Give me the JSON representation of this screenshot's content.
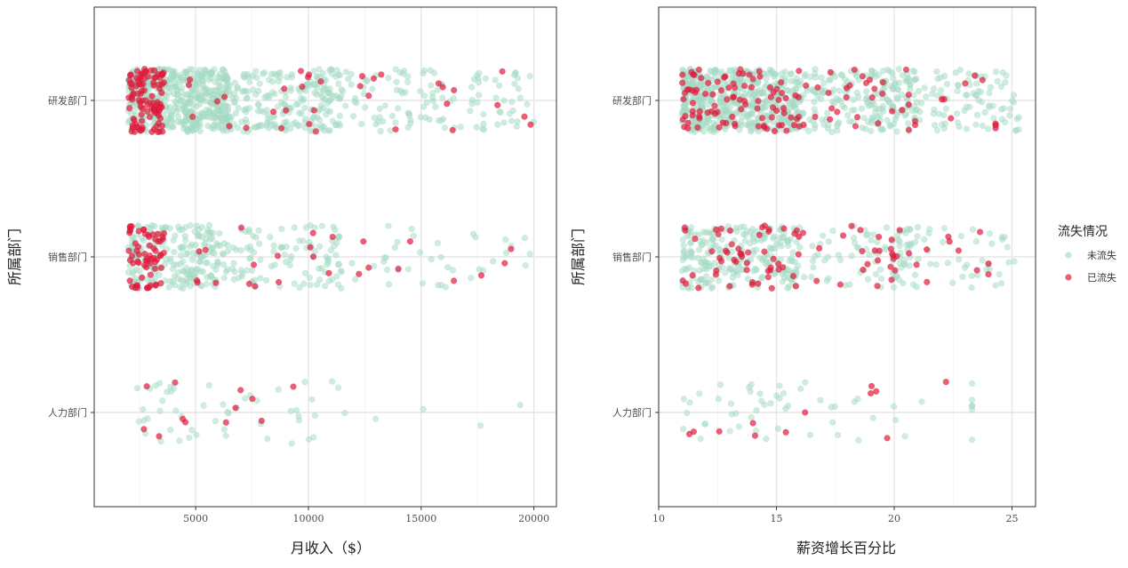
{
  "legend": {
    "title": "流失情况",
    "position": "right",
    "entries": [
      {
        "key": "no",
        "label": "未流失",
        "color": "#a8dcc6"
      },
      {
        "key": "yes",
        "label": "已流失",
        "color": "#e41a3c"
      }
    ]
  },
  "chart_data": [
    {
      "type": "scatter",
      "jitter": true,
      "xlabel": "月收入（$）",
      "ylabel": "所属部门",
      "xlim": [
        500,
        21000
      ],
      "xticks": [
        5000,
        10000,
        15000,
        20000
      ],
      "xtick_labels": [
        "5000",
        "10000",
        "15000",
        "20000"
      ],
      "categories": [
        "研发部门",
        "销售部门",
        "人力部门"
      ],
      "grid": true,
      "series": [
        {
          "key": "no",
          "groups": [
            {
              "category": "研发部门",
              "count": 820,
              "x_range": [
                1000,
                20000
              ]
            },
            {
              "category": "销售部门",
              "count": 360,
              "x_range": [
                1050,
                20000
              ]
            },
            {
              "category": "人力部门",
              "count": 55,
              "x_range": [
                1550,
                19700
              ]
            }
          ]
        },
        {
          "key": "yes",
          "groups": [
            {
              "category": "研发部门",
              "count": 135,
              "x_range": [
                1000,
                20000
              ]
            },
            {
              "category": "销售部门",
              "count": 90,
              "x_range": [
                1050,
                20000
              ]
            },
            {
              "category": "人力部门",
              "count": 12,
              "x_range": [
                1550,
                10500
              ]
            }
          ]
        }
      ]
    },
    {
      "type": "scatter",
      "jitter": true,
      "xlabel": "薪资增长百分比",
      "ylabel": "所属部门",
      "xlim": [
        10,
        26
      ],
      "xticks": [
        10,
        15,
        20,
        25
      ],
      "xtick_labels": [
        "10",
        "15",
        "20",
        "25"
      ],
      "categories": [
        "研发部门",
        "销售部门",
        "人力部门"
      ],
      "grid": true,
      "series": [
        {
          "key": "no",
          "groups": [
            {
              "category": "研发部门",
              "count": 820,
              "x_range": [
                10.6,
                25.3
              ]
            },
            {
              "category": "销售部门",
              "count": 360,
              "x_range": [
                10.6,
                25.3
              ]
            },
            {
              "category": "人力部门",
              "count": 55,
              "x_range": [
                10.6,
                23.3
              ]
            }
          ]
        },
        {
          "key": "yes",
          "groups": [
            {
              "category": "研发部门",
              "count": 135,
              "x_range": [
                10.6,
                24.3
              ]
            },
            {
              "category": "销售部门",
              "count": 90,
              "x_range": [
                10.6,
                24.0
              ]
            },
            {
              "category": "人力部门",
              "count": 12,
              "x_range": [
                10.6,
                22.2
              ]
            }
          ]
        }
      ]
    }
  ]
}
